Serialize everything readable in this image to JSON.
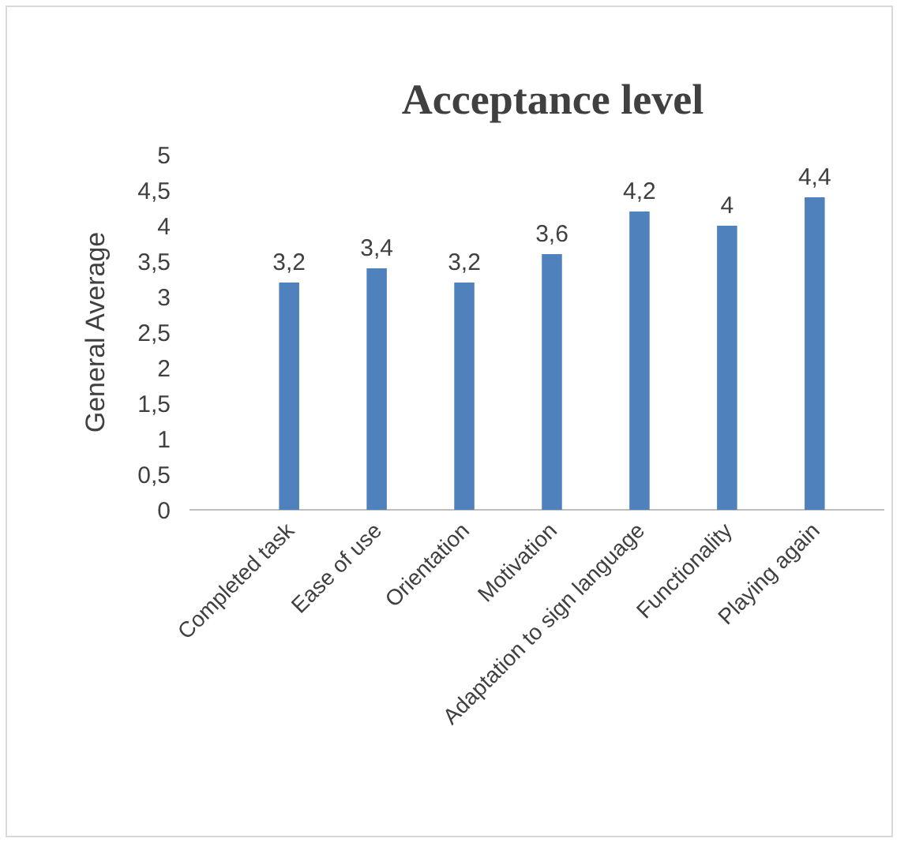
{
  "chart_data": {
    "type": "bar",
    "title": "Acceptance level",
    "ylabel": "General Average",
    "categories": [
      "Completed task",
      "Ease of use",
      "Orientation",
      "Motivation",
      "Adaptation to sign language",
      "Functionality",
      "Playing again"
    ],
    "values": [
      3.2,
      3.4,
      3.2,
      3.6,
      4.2,
      4,
      4.4
    ],
    "value_labels": [
      "3,2",
      "3,4",
      "3,2",
      "3,6",
      "4,2",
      "4",
      "4,4"
    ],
    "color": "#4f81bd",
    "ylim": [
      0,
      5
    ],
    "yticks": [
      0,
      {
        "value": 0.5,
        "label": "0,5"
      },
      1,
      {
        "value": 1.5,
        "label": "1,5"
      },
      2,
      {
        "value": 2.5,
        "label": "2,5"
      },
      3,
      {
        "value": 3.5,
        "label": "3,5"
      },
      4,
      {
        "value": 4.5,
        "label": "4,5"
      },
      5
    ]
  }
}
